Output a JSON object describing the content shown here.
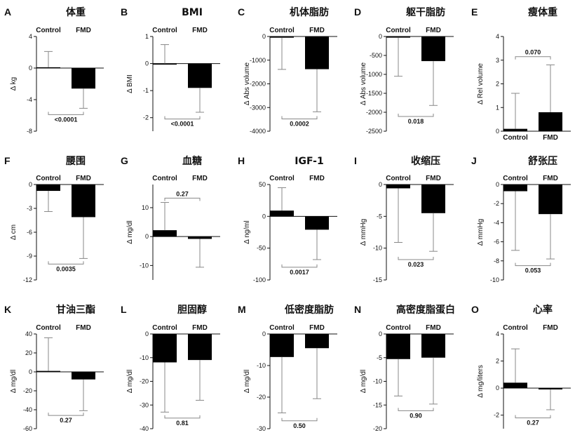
{
  "figure": {
    "description_text": null
  },
  "chart_data": [
    {
      "letter": "A",
      "title": "体重",
      "type": "bar",
      "categories": [
        "Control",
        "FMD"
      ],
      "labels_position": "top",
      "values": [
        0.1,
        -2.6
      ],
      "errors": [
        2.0,
        2.5
      ],
      "ylabel": "Δ kg",
      "ylim": [
        -8,
        4
      ],
      "yticks": [
        4,
        0,
        -4,
        -8
      ],
      "pvalue": "<0.0001",
      "pvalue_y": -5.9
    },
    {
      "letter": "B",
      "title": "BMI",
      "type": "bar",
      "categories": [
        "Control",
        "FMD"
      ],
      "labels_position": "top",
      "values": [
        0.0,
        -0.9
      ],
      "errors": [
        0.7,
        0.9
      ],
      "ylabel": "Δ BMI",
      "ylim": [
        -2.5,
        1
      ],
      "yticks": [
        1,
        0,
        -1,
        -2
      ],
      "pvalue": "<0.0001",
      "pvalue_y": -2.05
    },
    {
      "letter": "C",
      "title": "机体脂肪",
      "type": "bar",
      "categories": [
        "Control",
        "FMD"
      ],
      "labels_position": "top",
      "values": [
        -50,
        -1380
      ],
      "errors": [
        1340,
        1800
      ],
      "ylabel": "Δ Abs volume",
      "ylim": [
        -4000,
        0
      ],
      "yticks": [
        0,
        -1000,
        -2000,
        -3000,
        -4000
      ],
      "pvalue": "0.0002",
      "pvalue_y": -3480
    },
    {
      "letter": "D",
      "title": "躯干脂肪",
      "type": "bar",
      "categories": [
        "Control",
        "FMD"
      ],
      "labels_position": "top",
      "values": [
        -30,
        -650
      ],
      "errors": [
        1020,
        1170
      ],
      "ylabel": "Δ Abs volume",
      "ylim": [
        -2500,
        0
      ],
      "yticks": [
        0,
        -500,
        -1000,
        -1500,
        -2000,
        -2500
      ],
      "pvalue": "0.018",
      "pvalue_y": -2110
    },
    {
      "letter": "E",
      "title": "瘦体重",
      "type": "bar",
      "categories": [
        "Control",
        "FMD"
      ],
      "labels_position": "bottom",
      "values": [
        0.1,
        0.8
      ],
      "errors": [
        1.5,
        2.0
      ],
      "ylabel": "Δ Rel volume",
      "ylim": [
        0,
        4
      ],
      "yticks": [
        4,
        3,
        2,
        1,
        0
      ],
      "pvalue": "0.070",
      "pvalue_y": 3.15
    },
    {
      "letter": "F",
      "title": "腰围",
      "type": "bar",
      "categories": [
        "Control",
        "FMD"
      ],
      "labels_position": "top",
      "values": [
        -0.8,
        -4.1
      ],
      "errors": [
        2.6,
        5.2
      ],
      "ylabel": "Δ cm",
      "ylim": [
        -12,
        0
      ],
      "yticks": [
        0,
        -3,
        -6,
        -9,
        -12
      ],
      "pvalue": "0.0035",
      "pvalue_y": -10.0
    },
    {
      "letter": "G",
      "title": "血糖",
      "type": "bar",
      "categories": [
        "Control",
        "FMD"
      ],
      "labels_position": "top",
      "values": [
        2.2,
        -0.8
      ],
      "errors": [
        9.6,
        9.8
      ],
      "ylabel": "Δ mg/dl",
      "ylim": [
        -15,
        18
      ],
      "yticks": [
        10,
        0,
        -10
      ],
      "pvalue": "0.27",
      "pvalue_y": 13.3
    },
    {
      "letter": "H",
      "title": "IGF-1",
      "type": "bar",
      "categories": [
        "Control",
        "FMD"
      ],
      "labels_position": "top",
      "values": [
        9,
        -21
      ],
      "errors": [
        36,
        47
      ],
      "ylabel": "Δ ng/ml",
      "ylim": [
        -100,
        50
      ],
      "yticks": [
        50,
        0,
        -50,
        -100
      ],
      "pvalue": "0.0017",
      "pvalue_y": -80
    },
    {
      "letter": "I",
      "title": "收缩压",
      "type": "bar",
      "categories": [
        "Control",
        "FMD"
      ],
      "labels_position": "top",
      "values": [
        -0.6,
        -4.5
      ],
      "errors": [
        8.5,
        6.0
      ],
      "ylabel": "Δ mmHg",
      "ylim": [
        -15,
        0
      ],
      "yticks": [
        0,
        -5,
        -10,
        -15
      ],
      "pvalue": "0.023",
      "pvalue_y": -11.8
    },
    {
      "letter": "J",
      "title": "舒张压",
      "type": "bar",
      "categories": [
        "Control",
        "FMD"
      ],
      "labels_position": "top",
      "values": [
        -0.7,
        -3.1
      ],
      "errors": [
        6.2,
        4.7
      ],
      "ylabel": "Δ mmHg",
      "ylim": [
        -10,
        0
      ],
      "yticks": [
        0,
        -2,
        -4,
        -6,
        -8,
        -10
      ],
      "pvalue": "0.053",
      "pvalue_y": -8.5
    },
    {
      "letter": "K",
      "title": "甘油三酯",
      "type": "bar",
      "categories": [
        "Control",
        "FMD"
      ],
      "labels_position": "top",
      "values": [
        1,
        -8
      ],
      "errors": [
        35,
        33
      ],
      "ylabel": "Δ mg/dl",
      "ylim": [
        -60,
        40
      ],
      "yticks": [
        40,
        20,
        0,
        -20,
        -40,
        -60
      ],
      "pvalue": "0.27",
      "pvalue_y": -46
    },
    {
      "letter": "L",
      "title": "胆固醇",
      "type": "bar",
      "categories": [
        "Control",
        "FMD"
      ],
      "labels_position": "top",
      "values": [
        -12,
        -11
      ],
      "errors": [
        21,
        17
      ],
      "ylabel": "Δ mg/dl",
      "ylim": [
        -40,
        0
      ],
      "yticks": [
        0,
        -10,
        -20,
        -30,
        -40
      ],
      "pvalue": "0.81",
      "pvalue_y": -35.5
    },
    {
      "letter": "M",
      "title": "低密度脂肪",
      "type": "bar",
      "categories": [
        "Control",
        "FMD"
      ],
      "labels_position": "top",
      "values": [
        -7.3,
        -4.5
      ],
      "errors": [
        17.7,
        16.0
      ],
      "ylabel": "Δ mg/dl",
      "ylim": [
        -30,
        0
      ],
      "yticks": [
        0,
        -10,
        -20,
        -30
      ],
      "pvalue": "0.50",
      "pvalue_y": -27.5
    },
    {
      "letter": "N",
      "title": "高密度脂蛋白",
      "type": "bar",
      "categories": [
        "Control",
        "FMD"
      ],
      "labels_position": "top",
      "values": [
        -5.3,
        -5.0
      ],
      "errors": [
        7.8,
        9.8
      ],
      "ylabel": "Δ mg/dl",
      "ylim": [
        -20,
        0
      ],
      "yticks": [
        0,
        -5,
        -10,
        -15,
        -20
      ],
      "pvalue": "0.90",
      "pvalue_y": -16.2
    },
    {
      "letter": "O",
      "title": "心率",
      "type": "bar",
      "categories": [
        "Control",
        "FMD"
      ],
      "labels_position": "top",
      "values": [
        0.4,
        -0.1
      ],
      "errors": [
        2.5,
        1.5
      ],
      "ylabel": "Δ mg/liters",
      "ylim": [
        -3,
        4
      ],
      "yticks": [
        4,
        2,
        0,
        -2
      ],
      "pvalue": "0.27",
      "pvalue_y": -2.2
    }
  ]
}
